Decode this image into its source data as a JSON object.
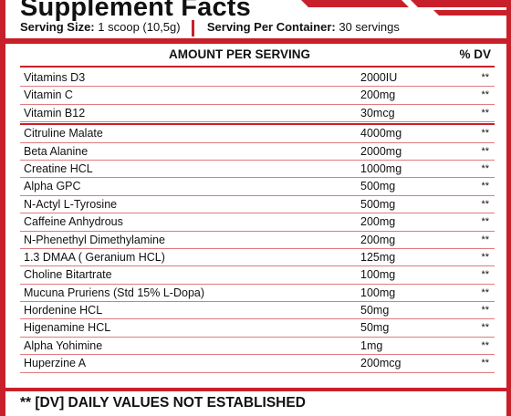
{
  "title": "Supplement Facts",
  "serving_size": {
    "label": "Serving Size:",
    "value": "1 scoop (10,5g)"
  },
  "servings_per_container": {
    "label": "Serving Per Container:",
    "value": "30 servings"
  },
  "header": {
    "amount": "AMOUNT PER SERVING",
    "dv": "% DV"
  },
  "groups": [
    {
      "rows": [
        {
          "name": "Vitamins D3",
          "amount": "2000IU",
          "dv": "**"
        },
        {
          "name": "Vitamin C",
          "amount": "200mg",
          "dv": "**"
        },
        {
          "name": "Vitamin B12",
          "amount": "30mcg",
          "dv": "**"
        }
      ]
    },
    {
      "rows": [
        {
          "name": "Citruline Malate",
          "amount": "4000mg",
          "dv": "**"
        },
        {
          "name": "Beta Alanine",
          "amount": "2000mg",
          "dv": "**"
        },
        {
          "name": "Creatine HCL",
          "amount": "1000mg",
          "dv": "**"
        },
        {
          "name": "Alpha GPC",
          "amount": "500mg",
          "dv": "**"
        },
        {
          "name": "N-Actyl L-Tyrosine",
          "amount": "500mg",
          "dv": "**"
        },
        {
          "name": "Caffeine Anhydrous",
          "amount": "200mg",
          "dv": "**"
        },
        {
          "name": "N-Phenethyl Dimethylamine",
          "amount": "200mg",
          "dv": "**"
        },
        {
          "name": "1.3 DMAA ( Geranium HCL)",
          "amount": "125mg",
          "dv": "**"
        },
        {
          "name": "Choline Bitartrate",
          "amount": "100mg",
          "dv": "**"
        },
        {
          "name": "Mucuna Pruriens (Std 15% L-Dopa)",
          "amount": "100mg",
          "dv": "**"
        },
        {
          "name": "Hordenine HCL",
          "amount": "50mg",
          "dv": "**"
        },
        {
          "name": "Higenamine HCL",
          "amount": "50mg",
          "dv": "**"
        },
        {
          "name": "Alpha Yohimine",
          "amount": "1mg",
          "dv": "**"
        },
        {
          "name": "Huperzine A",
          "amount": "200mcg",
          "dv": "**"
        }
      ]
    }
  ],
  "footnote": "** [DV] DAILY VALUES NOT ESTABLISHED",
  "colors": {
    "accent": "#c8202a",
    "row_line": "#e07a7f",
    "text": "#111111"
  }
}
